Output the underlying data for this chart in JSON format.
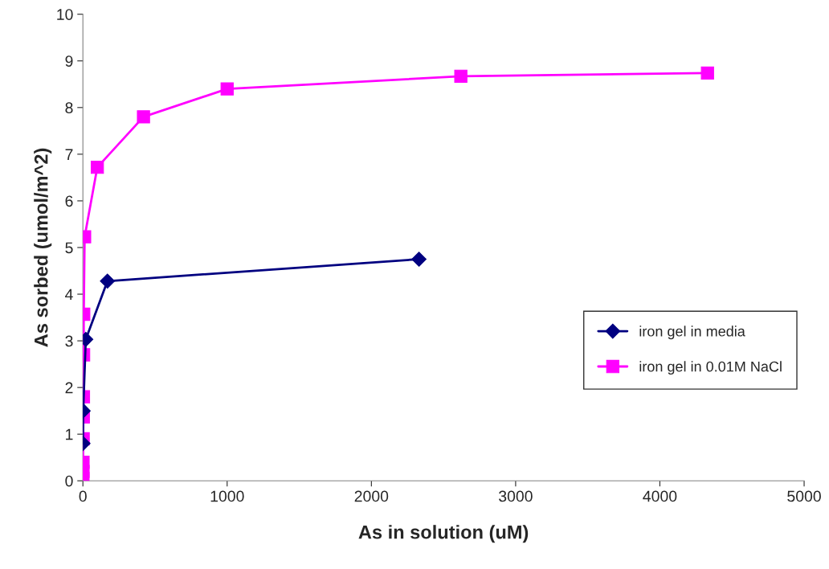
{
  "chart_data": {
    "type": "line",
    "xlabel": "As in solution (uM)",
    "ylabel": "As sorbed (umol/m^2)",
    "xlim": [
      0,
      5000
    ],
    "xticks": [
      0,
      1000,
      2000,
      3000,
      4000,
      5000
    ],
    "ylim": [
      0,
      10
    ],
    "yticks": [
      0,
      1,
      2,
      3,
      4,
      5,
      6,
      7,
      8,
      9,
      10
    ],
    "grid": false,
    "legend": "right",
    "series": [
      {
        "name": "iron gel in media",
        "color": "#000080",
        "marker": "diamond",
        "x": [
          1,
          2,
          20,
          170,
          2330
        ],
        "values": [
          0.8,
          1.5,
          3.03,
          4.28,
          4.75
        ]
      },
      {
        "name": "iron gel in 0.01M NaCl",
        "color": "#ff00ff",
        "marker": "square",
        "x": [
          0.5,
          1,
          1,
          2,
          3,
          4,
          5,
          6,
          12,
          100,
          420,
          1000,
          2620,
          4330
        ],
        "values": [
          0.05,
          0.2,
          0.4,
          0.9,
          1.37,
          1.8,
          2.7,
          3.57,
          5.23,
          6.72,
          7.8,
          8.4,
          8.67,
          8.74
        ]
      }
    ]
  }
}
